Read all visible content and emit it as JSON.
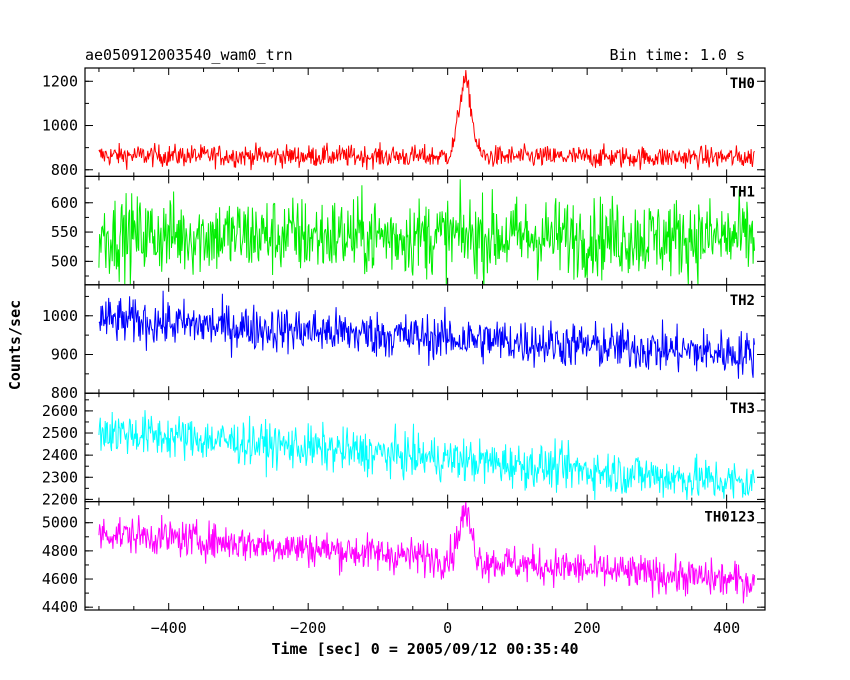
{
  "header": {
    "left": "ae050912003540_wam0_trn",
    "right": "Bin time: 1.0 s"
  },
  "chart_data": {
    "type": "line",
    "title": "ae050912003540_wam0_trn",
    "bin_time": "Bin time: 1.0 s",
    "xlabel": "Time [sec] 0 = 2005/09/12 00:35:40",
    "ylabel": "Counts/sec",
    "xlim": [
      -520,
      455
    ],
    "xticks": [
      -400,
      -200,
      0,
      200,
      400
    ],
    "x_range": [
      -500,
      440
    ],
    "panels": [
      {
        "label": "TH0",
        "color": "#ff0000",
        "ylim": [
          770,
          1260
        ],
        "yticks": [
          800,
          1000,
          1200
        ],
        "baseline_start": 865,
        "baseline_end": 855,
        "noise": 25,
        "peak": {
          "time": 25,
          "height": 340,
          "width": 9
        }
      },
      {
        "label": "TH1",
        "color": "#00ee00",
        "ylim": [
          460,
          645
        ],
        "yticks": [
          500,
          550,
          600
        ],
        "baseline_start": 545,
        "baseline_end": 540,
        "noise": 34,
        "peak": null
      },
      {
        "label": "TH2",
        "color": "#0000ff",
        "ylim": [
          800,
          1080
        ],
        "yticks": [
          800,
          900,
          1000
        ],
        "baseline_start": 990,
        "baseline_end": 900,
        "noise": 30,
        "peak": null
      },
      {
        "label": "TH3",
        "color": "#00ffff",
        "ylim": [
          2190,
          2680
        ],
        "yticks": [
          2200,
          2300,
          2400,
          2500,
          2600
        ],
        "baseline_start": 2510,
        "baseline_end": 2270,
        "noise": 50,
        "peak": null
      },
      {
        "label": "TH0123",
        "color": "#ff00ff",
        "ylim": [
          4380,
          5150
        ],
        "yticks": [
          4400,
          4600,
          4800,
          5000
        ],
        "baseline_start": 4930,
        "baseline_end": 4580,
        "noise": 65,
        "peak": {
          "time": 25,
          "height": 330,
          "width": 9
        }
      }
    ]
  }
}
